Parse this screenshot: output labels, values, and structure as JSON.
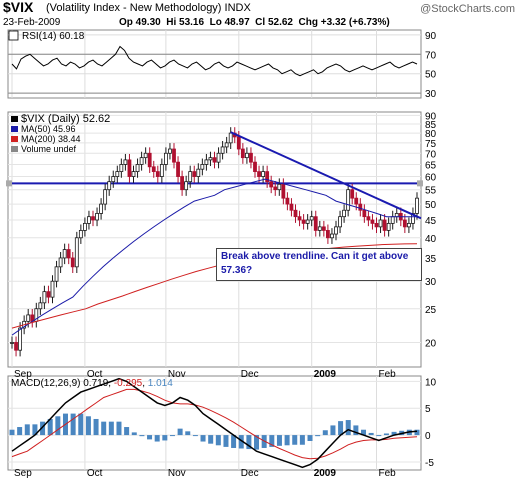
{
  "header": {
    "symbol": "$VIX",
    "name": "(Volatility Index - New Methodology) INDX",
    "logo": "@StockCharts.com",
    "date": "23-Feb-2009",
    "stats": "Op 49.30  Hi 53.16  Lo 48.97  Cl 52.62  Chg +3.32 (+6.73%)"
  },
  "colors": {
    "price_up": "#1a1a1a",
    "price_down": "#b01030",
    "ma50": "#1a1aa8",
    "ma200": "#d02020",
    "trend": "#1a1ab0",
    "macd": "#000000",
    "signal": "#d02020",
    "hist": "#4a86c0"
  },
  "rsi": {
    "label": "RSI(14) 60.18",
    "yticks": [
      90,
      70,
      50,
      30
    ],
    "values": [
      60,
      55,
      65,
      68,
      70,
      66,
      62,
      58,
      60,
      64,
      66,
      60,
      58,
      62,
      60,
      56,
      58,
      62,
      64,
      60,
      58,
      62,
      66,
      70,
      78,
      74,
      66,
      62,
      60,
      58,
      62,
      64,
      60,
      56,
      58,
      62,
      64,
      60,
      58,
      56,
      60,
      62,
      58,
      54,
      56,
      60,
      62,
      58,
      56,
      58,
      62,
      60,
      58,
      56,
      54,
      56,
      58,
      60,
      56,
      54,
      50,
      52,
      54,
      50,
      48,
      50,
      52,
      54,
      50,
      52,
      56,
      58,
      60,
      58,
      54,
      52,
      54,
      56,
      58,
      56,
      54,
      56,
      58,
      60,
      62,
      58,
      56,
      58,
      60,
      62,
      60
    ]
  },
  "annotation": {
    "text": "Break above trendline.  Can it get above 57.36?"
  },
  "chart_data": {
    "type": "line",
    "title": "$VIX (Volatility Index - New Methodology) INDX",
    "x_ticks": [
      "Sep",
      "Oct",
      "Nov",
      "Dec",
      "2009",
      "Feb"
    ],
    "price_yticks": [
      90,
      85,
      80,
      75,
      70,
      65,
      60,
      55,
      50,
      45,
      40,
      35,
      30,
      25,
      20
    ],
    "price_ylim": [
      17,
      92
    ],
    "price_scale": "log",
    "series": [
      {
        "name": "$VIX (Daily) 52.62",
        "values": [
          20,
          19,
          22,
          23,
          24,
          23,
          25,
          26,
          28,
          27,
          30,
          33,
          35,
          37,
          35,
          33,
          40,
          42,
          44,
          46,
          45,
          47,
          50,
          55,
          58,
          60,
          62,
          65,
          67,
          60,
          62,
          65,
          68,
          70,
          64,
          62,
          60,
          65,
          70,
          72,
          66,
          60,
          55,
          58,
          62,
          60,
          63,
          65,
          67,
          68,
          66,
          70,
          73,
          75,
          80,
          78,
          72,
          68,
          70,
          66,
          62,
          60,
          62,
          58,
          56,
          55,
          57,
          52,
          50,
          48,
          46,
          45,
          44,
          45,
          46,
          42,
          43,
          42,
          40,
          41,
          43,
          46,
          48,
          55,
          52,
          50,
          48,
          46,
          45,
          44,
          43,
          45,
          42,
          44,
          46,
          47,
          45,
          43,
          44,
          47,
          52
        ]
      },
      {
        "name": "MA(50) 45.96",
        "values": [
          21,
          22,
          23,
          24,
          25,
          26,
          27,
          29,
          31,
          33,
          35,
          37,
          39,
          41,
          43,
          45,
          47,
          49,
          51,
          52,
          53,
          55,
          56,
          57,
          58,
          59,
          58,
          57,
          56,
          55,
          54,
          53,
          51,
          50,
          49,
          48,
          47,
          46,
          46,
          46,
          46
        ]
      },
      {
        "name": "MA(200) 38.44",
        "values": [
          22,
          22.5,
          23,
          23.5,
          24,
          24.5,
          25,
          25.8,
          26.5,
          27.2,
          28,
          28.8,
          29.6,
          30.4,
          31.2,
          32,
          32.7,
          33.4,
          34,
          34.6,
          35.1,
          35.6,
          36,
          36.4,
          36.7,
          37,
          37.3,
          37.6,
          37.8,
          38,
          38.2,
          38.3,
          38.4,
          38.44
        ]
      }
    ],
    "legend": [
      "$VIX (Daily) 52.62",
      "MA(50) 45.96",
      "MA(200) 38.44",
      "Volume undef"
    ],
    "trendline": {
      "from": 80.5,
      "to": 45.5
    },
    "resistance": 57.36,
    "macd": {
      "label_macd": "MACD(12,26,9)",
      "v_macd": "0.719",
      "v_signal": "-0.295",
      "v_hist": "1.014",
      "yticks": [
        10,
        5,
        0,
        -5
      ],
      "ylim": [
        -6.5,
        11
      ],
      "macd": [
        -3,
        -2,
        -1,
        0,
        1.5,
        3,
        4.5,
        6,
        7,
        8,
        8.5,
        9,
        9.5,
        10,
        10.5,
        10,
        9,
        8,
        7,
        6,
        5.5,
        6,
        7,
        6.5,
        5.5,
        4,
        3,
        2,
        1,
        0,
        -1,
        -2,
        -3,
        -3.5,
        -4,
        -4.5,
        -5,
        -5.5,
        -6,
        -5.5,
        -4.5,
        -3,
        -1.5,
        0,
        1,
        0.5,
        0,
        -0.5,
        -1,
        -0.5,
        0,
        0.3,
        0.6,
        0.7
      ],
      "signal": [
        -4,
        -3.5,
        -3,
        -2,
        -1,
        0,
        1,
        2,
        3,
        4,
        5,
        6,
        7,
        7.5,
        8,
        8.5,
        8.5,
        8.2,
        7.8,
        7.2,
        6.5,
        6,
        5.8,
        5.8,
        5.6,
        5.2,
        4.6,
        3.9,
        3.2,
        2.4,
        1.5,
        0.6,
        -0.3,
        -1.1,
        -1.8,
        -2.5,
        -3.1,
        -3.7,
        -4.2,
        -4.4,
        -4.3,
        -3.9,
        -3.3,
        -2.6,
        -1.8,
        -1.3,
        -1.0,
        -0.9,
        -0.9,
        -0.8,
        -0.6,
        -0.5,
        -0.4,
        -0.3
      ]
    }
  }
}
